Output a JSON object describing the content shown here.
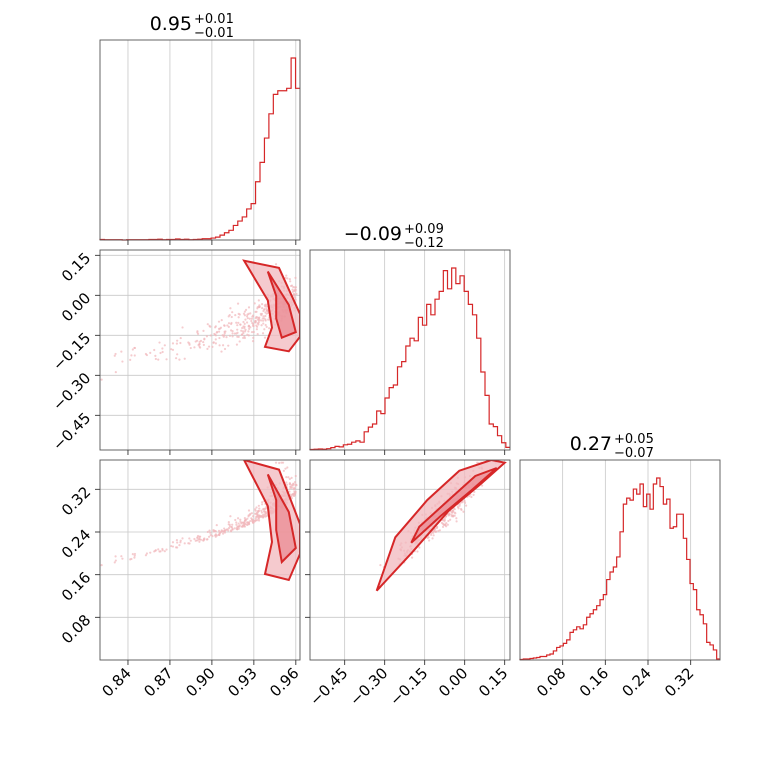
{
  "chart_data": {
    "type": "corner",
    "color": "#d62728",
    "fill_color": "#f2b8bd",
    "grid": true,
    "parameters": [
      {
        "label": "",
        "title": {
          "median": "0.95",
          "plus": "+0.01",
          "minus": "−0.01"
        },
        "range": [
          0.82,
          0.963
        ],
        "ticks": [
          {
            "v": 0.84,
            "t": "0.84"
          },
          {
            "v": 0.87,
            "t": "0.87"
          },
          {
            "v": 0.9,
            "t": "0.90"
          },
          {
            "v": 0.93,
            "t": "0.93"
          },
          {
            "v": 0.96,
            "t": "0.96"
          }
        ],
        "hist_counts": [
          2,
          1,
          1,
          1,
          1,
          0,
          1,
          1,
          1,
          1,
          1,
          2,
          2,
          3,
          1,
          2,
          2,
          4,
          2,
          3,
          1,
          2,
          3,
          5,
          5,
          8,
          12,
          20,
          30,
          40,
          60,
          78,
          95,
          128,
          150,
          240,
          320,
          420,
          520,
          600,
          615,
          615,
          625,
          750,
          625
        ]
      },
      {
        "label": "",
        "title": {
          "median": "−0.09",
          "plus": "+0.09",
          "minus": "−0.12"
        },
        "range": [
          -0.58,
          0.17
        ],
        "ticks": [
          {
            "v": -0.45,
            "t": "−0.45"
          },
          {
            "v": -0.3,
            "t": "−0.30"
          },
          {
            "v": -0.15,
            "t": "−0.15"
          },
          {
            "v": 0.0,
            "t": "0.00"
          },
          {
            "v": 0.15,
            "t": "0.15"
          }
        ],
        "hist_counts": [
          2,
          3,
          4,
          3,
          5,
          9,
          14,
          12,
          20,
          22,
          30,
          35,
          30,
          70,
          88,
          100,
          150,
          140,
          200,
          240,
          250,
          320,
          340,
          400,
          430,
          420,
          510,
          480,
          560,
          520,
          580,
          610,
          690,
          620,
          700,
          640,
          670,
          610,
          560,
          520,
          430,
          300,
          210,
          100,
          90,
          55,
          28,
          10
        ]
      },
      {
        "label": "",
        "title": {
          "median": "0.27",
          "plus": "+0.05",
          "minus": "−0.07"
        },
        "range": [
          0.0,
          0.375
        ],
        "ticks": [
          {
            "v": 0.08,
            "t": "0.08"
          },
          {
            "v": 0.16,
            "t": "0.16"
          },
          {
            "v": 0.24,
            "t": "0.24"
          },
          {
            "v": 0.32,
            "t": "0.32"
          }
        ],
        "hist_counts": [
          1,
          2,
          2,
          3,
          4,
          5,
          7,
          7,
          10,
          12,
          18,
          25,
          28,
          33,
          40,
          55,
          60,
          66,
          62,
          70,
          85,
          92,
          100,
          108,
          120,
          130,
          160,
          175,
          185,
          205,
          255,
          310,
          322,
          318,
          340,
          330,
          350,
          305,
          330,
          300,
          350,
          362,
          345,
          310,
          320,
          262,
          265,
          290,
          290,
          242,
          200,
          152,
          140,
          100,
          90,
          72,
          35,
          30,
          20,
          2
        ]
      }
    ],
    "pairs": [
      {
        "x": 0,
        "y": 1,
        "points": 420
      },
      {
        "x": 0,
        "y": 2,
        "points": 420
      },
      {
        "x": 1,
        "y": 2,
        "points": 420
      }
    ]
  }
}
